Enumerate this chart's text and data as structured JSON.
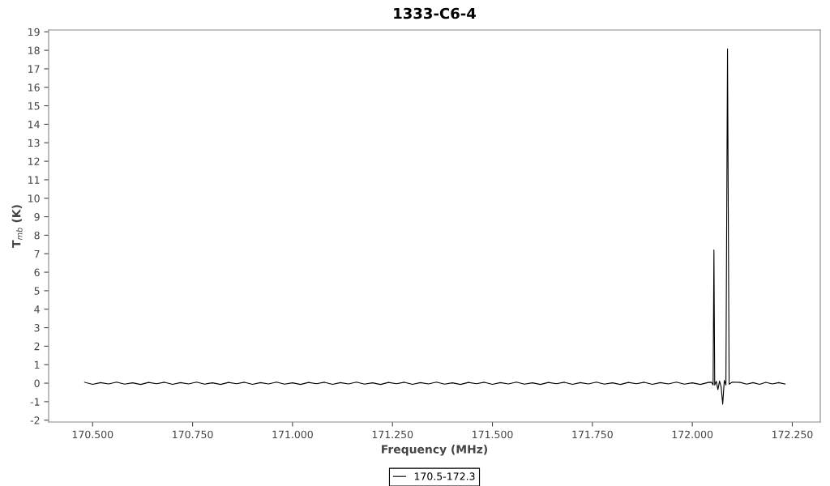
{
  "chart_data": {
    "type": "line",
    "title": "1333-C6-4",
    "xlabel": "Frequency (MHz)",
    "ylabel": "T$_{mb}$ (K)",
    "x": [
      170.48,
      170.5,
      170.52,
      170.54,
      170.56,
      170.58,
      170.6,
      170.62,
      170.64,
      170.66,
      170.68,
      170.7,
      170.72,
      170.74,
      170.76,
      170.78,
      170.8,
      170.82,
      170.84,
      170.86,
      170.88,
      170.9,
      170.92,
      170.94,
      170.96,
      170.98,
      171.0,
      171.02,
      171.04,
      171.06,
      171.08,
      171.1,
      171.12,
      171.14,
      171.16,
      171.18,
      171.2,
      171.22,
      171.24,
      171.26,
      171.28,
      171.3,
      171.32,
      171.34,
      171.36,
      171.38,
      171.4,
      171.42,
      171.44,
      171.46,
      171.48,
      171.5,
      171.52,
      171.54,
      171.56,
      171.58,
      171.6,
      171.62,
      171.64,
      171.66,
      171.68,
      171.7,
      171.72,
      171.74,
      171.76,
      171.78,
      171.8,
      171.82,
      171.84,
      171.86,
      171.88,
      171.9,
      171.92,
      171.94,
      171.96,
      171.98,
      172.0,
      172.02,
      172.04,
      172.048,
      172.052,
      172.054,
      172.056,
      172.06,
      172.064,
      172.068,
      172.072,
      172.076,
      172.08,
      172.084,
      172.088,
      172.092,
      172.1,
      172.12,
      172.136,
      172.152,
      172.168,
      172.184,
      172.2,
      172.216,
      172.232
    ],
    "series": [
      {
        "name": "170.5-172.3",
        "color": "#000000",
        "values": [
          0.05,
          -0.06,
          0.03,
          -0.04,
          0.06,
          -0.05,
          0.02,
          -0.07,
          0.04,
          -0.03,
          0.05,
          -0.06,
          0.03,
          -0.04,
          0.06,
          -0.05,
          0.02,
          -0.07,
          0.04,
          -0.03,
          0.05,
          -0.06,
          0.03,
          -0.04,
          0.06,
          -0.05,
          0.02,
          -0.07,
          0.04,
          -0.03,
          0.05,
          -0.06,
          0.03,
          -0.04,
          0.06,
          -0.05,
          0.02,
          -0.07,
          0.04,
          -0.03,
          0.05,
          -0.06,
          0.03,
          -0.04,
          0.06,
          -0.05,
          0.02,
          -0.07,
          0.04,
          -0.03,
          0.05,
          -0.06,
          0.03,
          -0.04,
          0.06,
          -0.05,
          0.02,
          -0.07,
          0.04,
          -0.03,
          0.05,
          -0.06,
          0.03,
          -0.04,
          0.06,
          -0.05,
          0.02,
          -0.07,
          0.04,
          -0.03,
          0.05,
          -0.06,
          0.03,
          -0.04,
          0.06,
          -0.05,
          0.02,
          -0.07,
          0.04,
          0.05,
          -0.1,
          7.2,
          -0.1,
          0.1,
          -0.35,
          0.12,
          -0.2,
          -1.13,
          0.15,
          -0.1,
          18.08,
          -0.05,
          0.06,
          0.04,
          -0.05,
          0.03,
          -0.06,
          0.05,
          -0.04,
          0.03,
          -0.05
        ]
      }
    ],
    "xlim": [
      170.39,
      172.32
    ],
    "ylim": [
      -2.1,
      19.1
    ],
    "xticks": [
      {
        "value": 170.5,
        "label": "170.500"
      },
      {
        "value": 170.75,
        "label": "170.750"
      },
      {
        "value": 171.0,
        "label": "171.000"
      },
      {
        "value": 171.25,
        "label": "171.250"
      },
      {
        "value": 171.5,
        "label": "171.500"
      },
      {
        "value": 171.75,
        "label": "171.750"
      },
      {
        "value": 172.0,
        "label": "172.000"
      },
      {
        "value": 172.25,
        "label": "172.250"
      }
    ],
    "yticks": [
      -2,
      -1,
      0,
      1,
      2,
      3,
      4,
      5,
      6,
      7,
      8,
      9,
      10,
      11,
      12,
      13,
      14,
      15,
      16,
      17,
      18,
      19
    ],
    "grid": false,
    "legend": "bottom",
    "marker": "none",
    "line_style": "solid"
  }
}
